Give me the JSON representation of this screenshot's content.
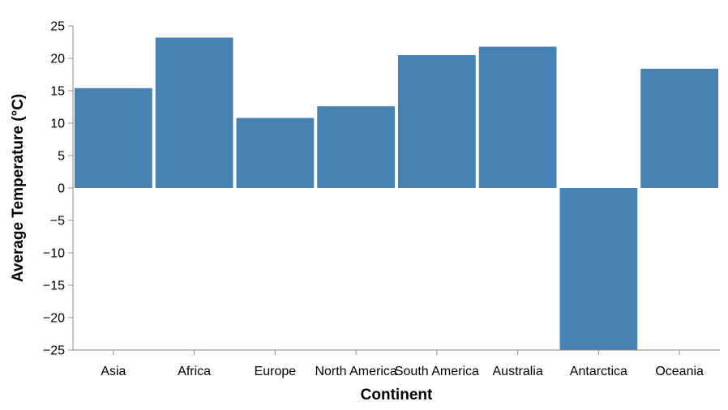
{
  "chart_data": {
    "type": "bar",
    "xlabel": "Continent",
    "ylabel": "Average Temperature (°C)",
    "categories": [
      "Asia",
      "Africa",
      "Europe",
      "North America",
      "South America",
      "Australia",
      "Antarctica",
      "Oceania"
    ],
    "values": [
      15.4,
      23.2,
      10.8,
      12.6,
      20.5,
      21.8,
      -25,
      18.4
    ],
    "ylim": [
      -25,
      25
    ],
    "yticks": [
      25,
      20,
      15,
      10,
      5,
      0,
      -5,
      -10,
      -15,
      -20,
      -25
    ],
    "ytick_labels": [
      "25",
      "20",
      "15",
      "10",
      "5",
      "0",
      "−5",
      "−10",
      "−15",
      "−20",
      "−25"
    ],
    "grid": false,
    "legend": "none",
    "colors": {
      "bar": "#4682b4",
      "axis": "#888888",
      "text": "#000000"
    }
  }
}
